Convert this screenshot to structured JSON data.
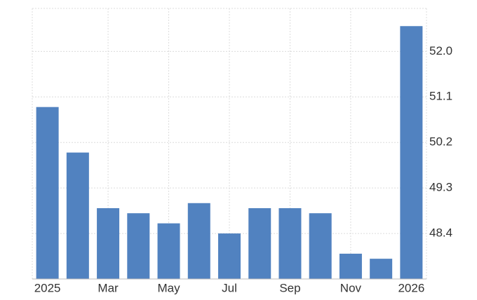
{
  "chart_data": {
    "type": "bar",
    "categories": [
      "2025",
      null,
      "Mar",
      null,
      "May",
      null,
      "Jul",
      null,
      "Sep",
      null,
      "Nov",
      null,
      "2026"
    ],
    "values": [
      50.9,
      50.0,
      48.9,
      48.8,
      48.6,
      49.0,
      48.4,
      48.9,
      48.9,
      48.8,
      48.0,
      47.9,
      52.5
    ],
    "color": "#5182c0",
    "ylim": [
      47.5,
      52.85
    ],
    "yticks": [
      {
        "value": 48.4,
        "label": "48.4"
      },
      {
        "value": 49.3,
        "label": "49.3"
      },
      {
        "value": 50.2,
        "label": "50.2"
      },
      {
        "value": 51.1,
        "label": "51.1"
      },
      {
        "value": 52,
        "label": "52.0"
      }
    ],
    "grid": true
  }
}
